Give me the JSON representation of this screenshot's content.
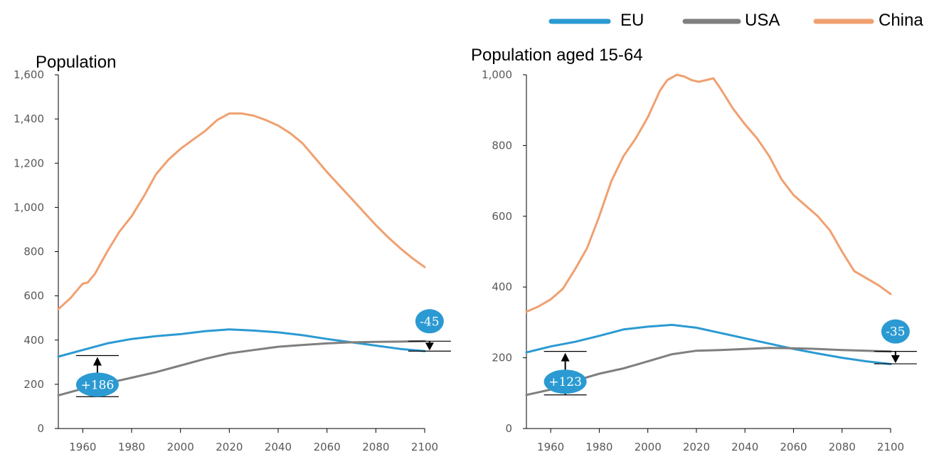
{
  "colors": {
    "EU": "#2b9ad2",
    "USA": "#7f7f7f",
    "China": "#f0a070",
    "badge": "#2b9ad2"
  },
  "legend": [
    {
      "name": "EU",
      "color": "#2b9ad2"
    },
    {
      "name": "USA",
      "color": "#7f7f7f"
    },
    {
      "name": "China",
      "color": "#f0a070"
    }
  ],
  "chart_data": [
    {
      "type": "line",
      "title": "Population",
      "xlabel": "",
      "ylabel": "",
      "xlim": [
        1950,
        2100
      ],
      "ylim": [
        0,
        1600
      ],
      "xticks": [
        1960,
        1980,
        2000,
        2020,
        2040,
        2060,
        2080,
        2100
      ],
      "yticks": [
        0,
        200,
        400,
        600,
        800,
        1000,
        1200,
        1400,
        1600
      ],
      "ytick_labels": [
        "0",
        "200",
        "400",
        "600",
        "800",
        "1,000",
        "1,200",
        "1,400",
        "1,600"
      ],
      "grid": false,
      "series": [
        {
          "name": "China",
          "x": [
            1950,
            1955,
            1958,
            1960,
            1962,
            1965,
            1970,
            1975,
            1980,
            1985,
            1990,
            1995,
            2000,
            2005,
            2010,
            2015,
            2020,
            2025,
            2030,
            2035,
            2040,
            2045,
            2050,
            2055,
            2060,
            2065,
            2070,
            2075,
            2080,
            2085,
            2090,
            2095,
            2100
          ],
          "y": [
            540,
            590,
            630,
            655,
            660,
            700,
            800,
            890,
            960,
            1050,
            1150,
            1215,
            1265,
            1305,
            1345,
            1395,
            1425,
            1425,
            1415,
            1395,
            1370,
            1335,
            1290,
            1225,
            1160,
            1100,
            1040,
            980,
            920,
            865,
            815,
            770,
            730
          ]
        },
        {
          "name": "EU",
          "x": [
            1950,
            1960,
            1970,
            1980,
            1990,
            2000,
            2010,
            2020,
            2030,
            2040,
            2050,
            2060,
            2070,
            2080,
            2090,
            2100
          ],
          "y": [
            325,
            355,
            385,
            405,
            418,
            427,
            440,
            448,
            443,
            435,
            422,
            405,
            390,
            375,
            360,
            350
          ]
        },
        {
          "name": "USA",
          "x": [
            1950,
            1960,
            1970,
            1980,
            1990,
            2000,
            2010,
            2020,
            2030,
            2040,
            2050,
            2060,
            2070,
            2080,
            2090,
            2100
          ],
          "y": [
            150,
            180,
            205,
            230,
            255,
            285,
            315,
            340,
            355,
            370,
            378,
            385,
            390,
            392,
            393,
            395
          ]
        }
      ],
      "annotations": [
        {
          "text": "+186",
          "x": 1966,
          "from": 144,
          "to": 330
        },
        {
          "text": "-45",
          "x": 2102,
          "from": 395,
          "to": 350
        }
      ]
    },
    {
      "type": "line",
      "title": "Population aged 15-64",
      "xlabel": "",
      "ylabel": "",
      "xlim": [
        1950,
        2100
      ],
      "ylim": [
        0,
        1000
      ],
      "xticks": [
        1960,
        1980,
        2000,
        2020,
        2040,
        2060,
        2080,
        2100
      ],
      "yticks": [
        0,
        200,
        400,
        600,
        800,
        1000
      ],
      "ytick_labels": [
        "0",
        "200",
        "400",
        "600",
        "800",
        "1,000"
      ],
      "grid": false,
      "series": [
        {
          "name": "China",
          "x": [
            1950,
            1955,
            1960,
            1965,
            1970,
            1975,
            1980,
            1985,
            1990,
            1995,
            2000,
            2005,
            2008,
            2012,
            2015,
            2018,
            2021,
            2024,
            2027,
            2030,
            2035,
            2040,
            2045,
            2050,
            2055,
            2060,
            2065,
            2070,
            2075,
            2080,
            2085,
            2090,
            2095,
            2100
          ],
          "y": [
            330,
            345,
            365,
            395,
            450,
            510,
            600,
            700,
            770,
            820,
            880,
            955,
            985,
            1000,
            995,
            985,
            980,
            985,
            990,
            960,
            905,
            860,
            820,
            770,
            705,
            660,
            630,
            600,
            560,
            500,
            445,
            425,
            405,
            380
          ]
        },
        {
          "name": "EU",
          "x": [
            1950,
            1960,
            1970,
            1980,
            1990,
            2000,
            2010,
            2020,
            2030,
            2040,
            2050,
            2060,
            2070,
            2080,
            2090,
            2100
          ],
          "y": [
            215,
            232,
            245,
            262,
            280,
            288,
            293,
            285,
            270,
            255,
            240,
            225,
            212,
            200,
            190,
            182
          ]
        },
        {
          "name": "USA",
          "x": [
            1950,
            1960,
            1970,
            1980,
            1990,
            2000,
            2010,
            2020,
            2030,
            2040,
            2050,
            2060,
            2070,
            2080,
            2090,
            2100
          ],
          "y": [
            95,
            110,
            135,
            155,
            170,
            190,
            210,
            220,
            222,
            225,
            228,
            227,
            225,
            222,
            220,
            218
          ]
        }
      ],
      "annotations": [
        {
          "text": "+123",
          "x": 1966,
          "from": 95,
          "to": 218
        },
        {
          "text": "-35",
          "x": 2102,
          "from": 218,
          "to": 183
        }
      ]
    }
  ]
}
